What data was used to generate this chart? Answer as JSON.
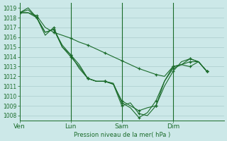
{
  "background_color": "#cce8e8",
  "grid_color": "#aacccc",
  "line_color": "#1a6b2a",
  "xlabel": "Pression niveau de la mer( hPa )",
  "ylim": [
    1007.5,
    1019.5
  ],
  "yticks": [
    1008,
    1009,
    1010,
    1011,
    1012,
    1013,
    1014,
    1015,
    1016,
    1017,
    1018,
    1019
  ],
  "xtick_labels": [
    "Ven",
    "Lun",
    "Sam",
    "Dim"
  ],
  "xlim": [
    0,
    12
  ],
  "vlines_x": [
    3,
    6,
    9
  ],
  "lines": [
    {
      "x": [
        0,
        0.5,
        1,
        1.5,
        2,
        2.5,
        3,
        3.5,
        4,
        4.5,
        5,
        5.5,
        6,
        6.5,
        7,
        7.5,
        8,
        8.5,
        9,
        9.5,
        10,
        10.5,
        11
      ],
      "y": [
        1018.5,
        1018.5,
        1018.2,
        1017.0,
        1016.5,
        1016.2,
        1015.9,
        1015.5,
        1015.2,
        1014.8,
        1014.4,
        1014.0,
        1013.6,
        1013.2,
        1012.8,
        1012.5,
        1012.2,
        1012.0,
        1013.0,
        1013.2,
        1013.0,
        1013.5,
        1012.5
      ]
    },
    {
      "x": [
        0,
        0.5,
        1,
        1.5,
        2,
        2.5,
        3,
        3.5,
        4,
        4.5,
        5,
        5.5,
        6,
        6.5,
        7,
        7.5,
        8,
        8.5,
        9,
        9.5,
        10,
        10.5,
        11
      ],
      "y": [
        1018.5,
        1019.0,
        1018.0,
        1016.5,
        1016.8,
        1015.2,
        1014.2,
        1013.2,
        1011.8,
        1011.5,
        1011.5,
        1011.3,
        1009.3,
        1008.8,
        1007.8,
        1008.3,
        1009.5,
        1011.5,
        1013.0,
        1013.2,
        1013.8,
        1013.5,
        1012.5
      ]
    },
    {
      "x": [
        0,
        0.5,
        1,
        1.5,
        2,
        2.5,
        3,
        3.5,
        4,
        4.5,
        5,
        5.5,
        6,
        6.5,
        7,
        7.5,
        8,
        8.5,
        9,
        9.5,
        10,
        10.5,
        11
      ],
      "y": [
        1018.5,
        1018.8,
        1018.0,
        1016.5,
        1016.8,
        1015.0,
        1014.0,
        1013.0,
        1011.8,
        1011.5,
        1011.5,
        1011.2,
        1009.0,
        1009.3,
        1008.2,
        1008.0,
        1009.0,
        1011.0,
        1012.5,
        1013.5,
        1013.8,
        1013.5,
        1012.5
      ]
    },
    {
      "x": [
        0,
        0.5,
        1,
        1.5,
        2,
        2.5,
        3,
        3.5,
        4,
        4.5,
        5,
        5.5,
        6,
        6.5,
        7,
        7.5,
        8,
        8.5,
        9,
        9.5,
        10,
        10.5,
        11
      ],
      "y": [
        1018.5,
        1018.5,
        1018.0,
        1016.2,
        1017.0,
        1015.0,
        1014.2,
        1012.8,
        1011.8,
        1011.5,
        1011.5,
        1011.2,
        1009.5,
        1009.0,
        1008.5,
        1008.8,
        1009.0,
        1011.5,
        1012.8,
        1013.2,
        1013.5,
        1013.5,
        1012.5
      ]
    }
  ],
  "marker": "+",
  "marker_indices": [
    0,
    2,
    4,
    6,
    8,
    10,
    12,
    14,
    16,
    18,
    20,
    22
  ]
}
